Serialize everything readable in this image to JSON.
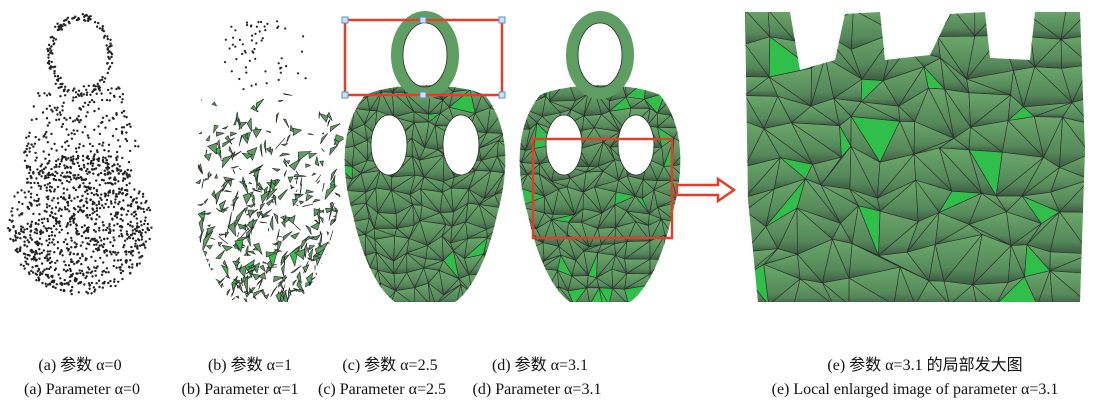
{
  "captions": [
    {
      "zh": "(a) 参数 α=0",
      "en": "(a) Parameter α=0"
    },
    {
      "zh": "(b) 参数 α=1",
      "en": "(b) Parameter α=1"
    },
    {
      "zh": "(c) 参数 α=2.5",
      "en": "(c) Parameter α=2.5"
    },
    {
      "zh": "(d) 参数 α=3.1",
      "en": "(d) Parameter α=3.1"
    },
    {
      "zh": "(e) 参数 α=3.1 的局部发大图",
      "en": "(e) Local enlarged image of parameter α=3.1"
    }
  ]
}
